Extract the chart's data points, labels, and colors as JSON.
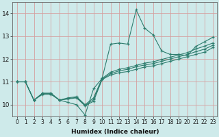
{
  "xlabel": "Humidex (Indice chaleur)",
  "ylabel": "",
  "background_color": "#ceeaea",
  "line_color": "#2e7d6e",
  "grid_color": "#d4a0a0",
  "xlim": [
    -0.5,
    23.5
  ],
  "ylim": [
    9.5,
    14.5
  ],
  "xticks": [
    0,
    1,
    2,
    3,
    4,
    5,
    6,
    7,
    8,
    9,
    10,
    11,
    12,
    13,
    14,
    15,
    16,
    17,
    18,
    19,
    20,
    21,
    22,
    23
  ],
  "yticks": [
    10,
    11,
    12,
    13,
    14
  ],
  "series": [
    [
      11.0,
      11.0,
      10.2,
      10.5,
      10.5,
      10.2,
      10.1,
      10.0,
      9.55,
      10.7,
      11.15,
      12.65,
      12.7,
      12.65,
      14.15,
      13.35,
      13.05,
      12.35,
      12.2,
      12.2,
      12.15,
      12.55,
      12.75,
      12.95
    ],
    [
      11.0,
      11.0,
      10.2,
      10.45,
      10.45,
      10.2,
      10.25,
      10.3,
      9.95,
      10.15,
      11.1,
      11.3,
      11.4,
      11.45,
      11.55,
      11.65,
      11.7,
      11.8,
      11.9,
      12.0,
      12.1,
      12.2,
      12.3,
      12.5
    ],
    [
      11.0,
      11.0,
      10.2,
      10.48,
      10.48,
      10.2,
      10.27,
      10.32,
      9.97,
      10.22,
      11.12,
      11.36,
      11.48,
      11.55,
      11.66,
      11.74,
      11.8,
      11.9,
      12.0,
      12.1,
      12.2,
      12.32,
      12.43,
      12.6
    ],
    [
      11.0,
      11.0,
      10.2,
      10.5,
      10.5,
      10.2,
      10.3,
      10.35,
      10.0,
      10.3,
      11.15,
      11.42,
      11.55,
      11.62,
      11.72,
      11.82,
      11.88,
      11.98,
      12.08,
      12.18,
      12.28,
      12.44,
      12.56,
      12.7
    ]
  ]
}
